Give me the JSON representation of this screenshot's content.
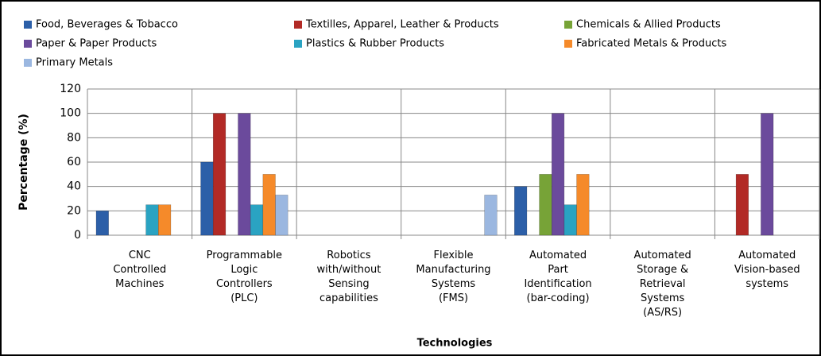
{
  "chart_data": {
    "type": "bar",
    "categories": [
      "CNC Controlled Machines",
      "Programmable Logic Controllers (PLC)",
      "Robotics with/without Sensing capabilities",
      "Flexible Manufacturing Systems (FMS)",
      "Automated Part Identification (bar-coding)",
      "Automated Storage & Retrieval Systems (AS/RS)",
      "Automated Vision-based systems"
    ],
    "series": [
      {
        "name": "Food, Beverages & Tobacco",
        "color": "#2c5fa8",
        "values": [
          20,
          60,
          0,
          0,
          40,
          0,
          0
        ]
      },
      {
        "name": "Textilles, Apparel, Leather & Products",
        "color": "#b22a26",
        "values": [
          0,
          100,
          0,
          0,
          0,
          0,
          50
        ]
      },
      {
        "name": "Chemicals & Allied Products",
        "color": "#77a337",
        "values": [
          0,
          0,
          0,
          0,
          50,
          0,
          0
        ]
      },
      {
        "name": "Paper & Paper Products",
        "color": "#6b4a9c",
        "values": [
          0,
          100,
          0,
          0,
          100,
          0,
          100
        ]
      },
      {
        "name": "Plastics & Rubber Products",
        "color": "#2aa3c2",
        "values": [
          25,
          25,
          0,
          0,
          25,
          0,
          0
        ]
      },
      {
        "name": "Fabricated Metals & Products",
        "color": "#f58a2a",
        "values": [
          25,
          50,
          0,
          0,
          50,
          0,
          0
        ]
      },
      {
        "name": "Primary Metals",
        "color": "#9bb7e0",
        "values": [
          0,
          33,
          0,
          33,
          0,
          0,
          0
        ]
      }
    ],
    "y_label": "Percentage (%)",
    "x_label": "Technologies",
    "ylim": [
      0,
      120
    ],
    "yticks": [
      0,
      20,
      40,
      60,
      80,
      100,
      120
    ],
    "grid": true,
    "legend": "top"
  }
}
